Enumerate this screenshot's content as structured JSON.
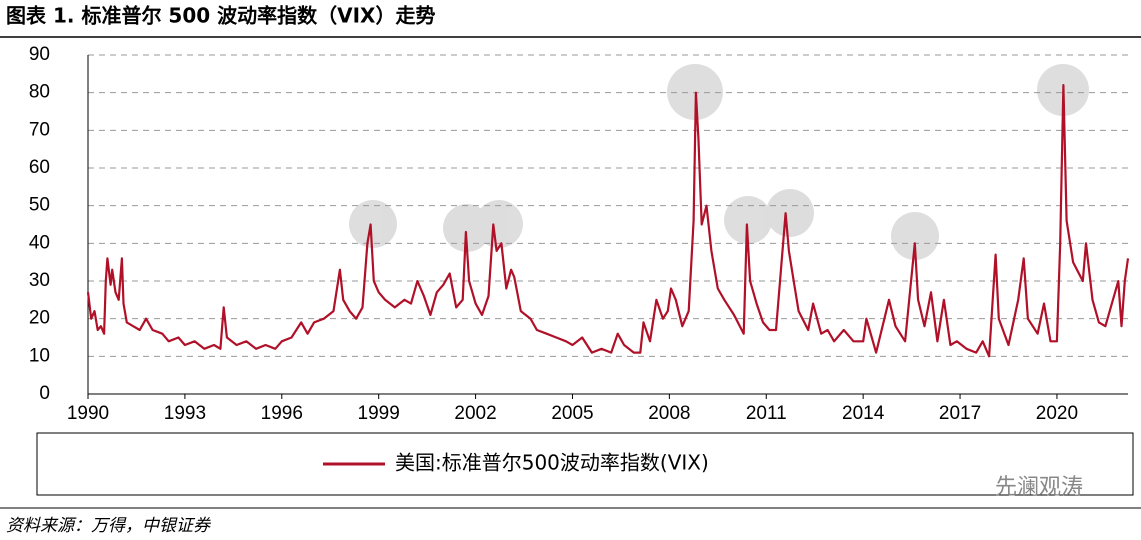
{
  "chart_data": {
    "type": "line",
    "title": "图表 1. 标准普尔 500 波动率指数（VIX）走势",
    "source": "资料来源：万得，中银证券",
    "watermark": "先澜观涛",
    "xlim": [
      1990,
      2022.2
    ],
    "xticks": [
      1990,
      1993,
      1996,
      1999,
      2002,
      2005,
      2008,
      2011,
      2014,
      2017,
      2020
    ],
    "ylim": [
      0,
      90
    ],
    "yticks": [
      0,
      10,
      20,
      30,
      40,
      50,
      60,
      70,
      80,
      90
    ],
    "grid": true,
    "x": [
      1990.0,
      1990.1,
      1990.2,
      1990.3,
      1990.4,
      1990.5,
      1990.55,
      1990.6,
      1990.7,
      1990.75,
      1990.85,
      1990.95,
      1991.05,
      1991.1,
      1991.2,
      1991.4,
      1991.6,
      1991.8,
      1992.0,
      1992.3,
      1992.5,
      1992.8,
      1993.0,
      1993.3,
      1993.6,
      1993.9,
      1994.1,
      1994.2,
      1994.3,
      1994.6,
      1994.9,
      1995.2,
      1995.5,
      1995.8,
      1996.0,
      1996.3,
      1996.6,
      1996.8,
      1997.0,
      1997.3,
      1997.6,
      1997.8,
      1997.9,
      1998.1,
      1998.3,
      1998.5,
      1998.65,
      1998.75,
      1998.85,
      1999.0,
      1999.2,
      1999.5,
      1999.8,
      2000.0,
      2000.2,
      2000.4,
      2000.6,
      2000.8,
      2001.0,
      2001.2,
      2001.4,
      2001.6,
      2001.7,
      2001.8,
      2002.0,
      2002.2,
      2002.4,
      2002.55,
      2002.65,
      2002.8,
      2002.95,
      2003.1,
      2003.2,
      2003.4,
      2003.7,
      2003.9,
      2004.2,
      2004.5,
      2004.8,
      2005.0,
      2005.3,
      2005.6,
      2005.9,
      2006.2,
      2006.4,
      2006.6,
      2006.9,
      2007.1,
      2007.2,
      2007.4,
      2007.6,
      2007.8,
      2007.95,
      2008.05,
      2008.2,
      2008.4,
      2008.6,
      2008.75,
      2008.82,
      2008.9,
      2009.0,
      2009.15,
      2009.3,
      2009.5,
      2009.7,
      2010.0,
      2010.3,
      2010.4,
      2010.5,
      2010.7,
      2010.9,
      2011.1,
      2011.3,
      2011.6,
      2011.7,
      2011.85,
      2012.0,
      2012.3,
      2012.45,
      2012.7,
      2012.9,
      2013.1,
      2013.4,
      2013.7,
      2014.0,
      2014.1,
      2014.4,
      2014.8,
      2015.0,
      2015.3,
      2015.6,
      2015.7,
      2015.9,
      2016.1,
      2016.3,
      2016.5,
      2016.7,
      2016.9,
      2017.2,
      2017.5,
      2017.7,
      2017.9,
      2018.1,
      2018.2,
      2018.5,
      2018.8,
      2018.97,
      2019.1,
      2019.4,
      2019.6,
      2019.8,
      2020.0,
      2020.1,
      2020.2,
      2020.3,
      2020.5,
      2020.8,
      2020.9,
      2021.1,
      2021.3,
      2021.5,
      2021.9,
      2022.0,
      2022.1,
      2022.2
    ],
    "series": [
      {
        "name": "美国:标准普尔500波动率指数(VIX)",
        "color": "#b01028",
        "values": [
          27,
          20,
          22,
          17,
          18,
          16,
          30,
          36,
          29,
          33,
          27,
          25,
          36,
          24,
          19,
          18,
          17,
          20,
          17,
          16,
          14,
          15,
          13,
          14,
          12,
          13,
          12,
          23,
          15,
          13,
          14,
          12,
          13,
          12,
          14,
          15,
          19,
          16,
          19,
          20,
          22,
          33,
          25,
          22,
          20,
          23,
          40,
          45,
          30,
          27,
          25,
          23,
          25,
          24,
          30,
          26,
          21,
          27,
          29,
          32,
          23,
          25,
          43,
          30,
          24,
          21,
          26,
          45,
          38,
          40,
          28,
          33,
          31,
          22,
          20,
          17,
          16,
          15,
          14,
          13,
          15,
          11,
          12,
          11,
          16,
          13,
          11,
          11,
          19,
          14,
          25,
          20,
          22,
          28,
          25,
          18,
          22,
          46,
          80,
          68,
          45,
          50,
          38,
          28,
          25,
          21,
          16,
          45,
          30,
          24,
          19,
          17,
          17,
          48,
          38,
          30,
          22,
          17,
          24,
          16,
          17,
          14,
          17,
          14,
          14,
          20,
          11,
          25,
          18,
          14,
          40,
          25,
          18,
          27,
          14,
          25,
          13,
          14,
          12,
          11,
          14,
          10,
          37,
          20,
          13,
          25,
          36,
          20,
          16,
          24,
          14,
          14,
          40,
          82,
          46,
          35,
          30,
          40,
          25,
          19,
          18,
          30,
          18,
          30,
          36
        ]
      }
    ]
  }
}
